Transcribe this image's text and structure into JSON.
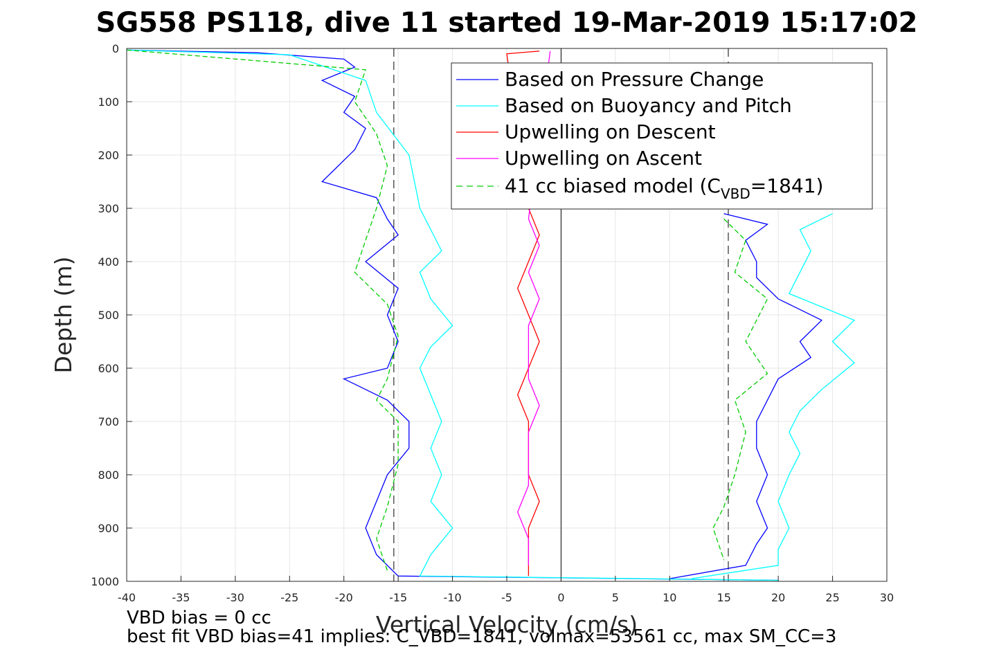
{
  "chart_data": {
    "type": "line",
    "title": "SG558 PS118, dive 11 started 19-Mar-2019 15:17:02",
    "xlabel": "Vertical Velocity (cm/s)",
    "ylabel": "Depth (m)",
    "xlim": [
      -40,
      30
    ],
    "ylim": [
      0,
      1000
    ],
    "y_reversed": true,
    "grid": true,
    "x_ticks": [
      "-40",
      "-35",
      "-30",
      "-25",
      "-20",
      "-15",
      "-10",
      "-5",
      "0",
      "5",
      "10",
      "15",
      "20",
      "25",
      "30"
    ],
    "y_ticks": [
      "0",
      "100",
      "200",
      "300",
      "400",
      "500",
      "600",
      "700",
      "800",
      "900",
      "1000"
    ],
    "legend_position": "top-right",
    "reference_lines": {
      "dashed_x": [
        -15.4,
        15.4
      ],
      "solid_x": [
        0
      ]
    },
    "series": [
      {
        "name": "Based on Pressure Change",
        "color": "#0000ff",
        "style": "solid",
        "descent": [
          [
            -40,
            3
          ],
          [
            -28,
            8
          ],
          [
            -20,
            20
          ],
          [
            -19,
            35
          ],
          [
            -22,
            60
          ],
          [
            -19,
            90
          ],
          [
            -20,
            120
          ],
          [
            -18,
            150
          ],
          [
            -19,
            190
          ],
          [
            -21,
            230
          ],
          [
            -22,
            250
          ],
          [
            -17,
            280
          ],
          [
            -16,
            320
          ],
          [
            -15,
            350
          ],
          [
            -18,
            400
          ],
          [
            -15,
            450
          ],
          [
            -16,
            500
          ],
          [
            -15,
            550
          ],
          [
            -16,
            600
          ],
          [
            -20,
            620
          ],
          [
            -16,
            660
          ],
          [
            -14,
            700
          ],
          [
            -14,
            750
          ],
          [
            -16,
            800
          ],
          [
            -17,
            850
          ],
          [
            -18,
            900
          ],
          [
            -17,
            950
          ],
          [
            -15,
            990
          ],
          [
            20,
            998
          ]
        ],
        "ascent": [
          [
            15,
            310
          ],
          [
            19,
            330
          ],
          [
            17,
            360
          ],
          [
            18,
            400
          ],
          [
            18,
            430
          ],
          [
            20,
            470
          ],
          [
            24,
            510
          ],
          [
            22,
            550
          ],
          [
            23,
            580
          ],
          [
            20,
            620
          ],
          [
            19,
            660
          ],
          [
            18,
            700
          ],
          [
            18,
            750
          ],
          [
            19,
            800
          ],
          [
            18,
            850
          ],
          [
            19,
            900
          ],
          [
            18,
            930
          ],
          [
            17,
            970
          ],
          [
            10,
            995
          ]
        ]
      },
      {
        "name": "Based on Buoyancy and Pitch",
        "color": "#00ffff",
        "style": "solid",
        "descent": [
          [
            -40,
            3
          ],
          [
            -25,
            12
          ],
          [
            -18,
            60
          ],
          [
            -17,
            120
          ],
          [
            -14,
            200
          ],
          [
            -13,
            300
          ],
          [
            -12,
            340
          ],
          [
            -11,
            380
          ],
          [
            -13,
            420
          ],
          [
            -12,
            470
          ],
          [
            -10,
            520
          ],
          [
            -12,
            560
          ],
          [
            -13,
            600
          ],
          [
            -12,
            650
          ],
          [
            -11,
            700
          ],
          [
            -12,
            750
          ],
          [
            -11,
            800
          ],
          [
            -12,
            850
          ],
          [
            -10,
            900
          ],
          [
            -12,
            950
          ],
          [
            -13,
            990
          ],
          [
            20,
            998
          ]
        ],
        "ascent": [
          [
            25,
            310
          ],
          [
            22,
            340
          ],
          [
            23,
            380
          ],
          [
            22,
            420
          ],
          [
            21,
            460
          ],
          [
            27,
            510
          ],
          [
            25,
            550
          ],
          [
            27,
            590
          ],
          [
            24,
            640
          ],
          [
            22,
            680
          ],
          [
            21,
            720
          ],
          [
            22,
            760
          ],
          [
            21,
            800
          ],
          [
            20,
            850
          ],
          [
            21,
            900
          ],
          [
            20,
            940
          ],
          [
            20,
            970
          ],
          [
            12,
            995
          ]
        ]
      },
      {
        "name": "Upwelling on Descent",
        "color": "#ff0000",
        "style": "solid",
        "values": [
          [
            -2,
            5
          ],
          [
            -5,
            10
          ],
          [
            -3,
            300
          ],
          [
            -2,
            350
          ],
          [
            -3,
            400
          ],
          [
            -4,
            450
          ],
          [
            -3,
            500
          ],
          [
            -2,
            550
          ],
          [
            -3,
            600
          ],
          [
            -4,
            650
          ],
          [
            -3,
            700
          ],
          [
            -3,
            750
          ],
          [
            -3,
            800
          ],
          [
            -2,
            850
          ],
          [
            -3,
            900
          ],
          [
            -3,
            950
          ],
          [
            -3,
            990
          ]
        ]
      },
      {
        "name": "Upwelling on Ascent",
        "color": "#ff00ff",
        "style": "solid",
        "values": [
          [
            -1,
            5
          ],
          [
            -3,
            320
          ],
          [
            -2,
            370
          ],
          [
            -3,
            420
          ],
          [
            -2,
            470
          ],
          [
            -3,
            520
          ],
          [
            -3,
            570
          ],
          [
            -3,
            620
          ],
          [
            -2,
            670
          ],
          [
            -3,
            720
          ],
          [
            -3,
            770
          ],
          [
            -3,
            820
          ],
          [
            -4,
            870
          ],
          [
            -3,
            920
          ],
          [
            -3,
            970
          ]
        ]
      },
      {
        "name": "41 cc biased model (C_VBD=1841)",
        "color": "#00cc00",
        "style": "dashed",
        "descent": [
          [
            -40,
            3
          ],
          [
            -18,
            40
          ],
          [
            -19,
            100
          ],
          [
            -17,
            160
          ],
          [
            -16,
            220
          ],
          [
            -17,
            300
          ],
          [
            -18,
            360
          ],
          [
            -19,
            420
          ],
          [
            -16,
            480
          ],
          [
            -15,
            540
          ],
          [
            -16,
            620
          ],
          [
            -17,
            660
          ],
          [
            -15,
            700
          ],
          [
            -15,
            780
          ],
          [
            -16,
            860
          ],
          [
            -17,
            920
          ],
          [
            -16,
            980
          ]
        ],
        "ascent": [
          [
            15,
            320
          ],
          [
            17,
            360
          ],
          [
            16,
            420
          ],
          [
            19,
            470
          ],
          [
            17,
            550
          ],
          [
            19,
            610
          ],
          [
            16,
            660
          ],
          [
            17,
            720
          ],
          [
            16,
            800
          ],
          [
            15,
            860
          ],
          [
            14,
            900
          ],
          [
            15,
            960
          ]
        ]
      }
    ]
  },
  "legend": {
    "labels": [
      "Based on Pressure Change",
      "Based on Buoyancy and Pitch",
      "Upwelling on Descent",
      "Upwelling on Ascent"
    ],
    "model_prefix": "41 cc biased model (C",
    "model_sub": "VBD",
    "model_suffix": "=1841)"
  },
  "notes": {
    "line1": "VBD bias = 0 cc",
    "line2": "best fit VBD bias=41 implies: C_VBD=1841, volmax=53561 cc, max SM_CC=3"
  }
}
